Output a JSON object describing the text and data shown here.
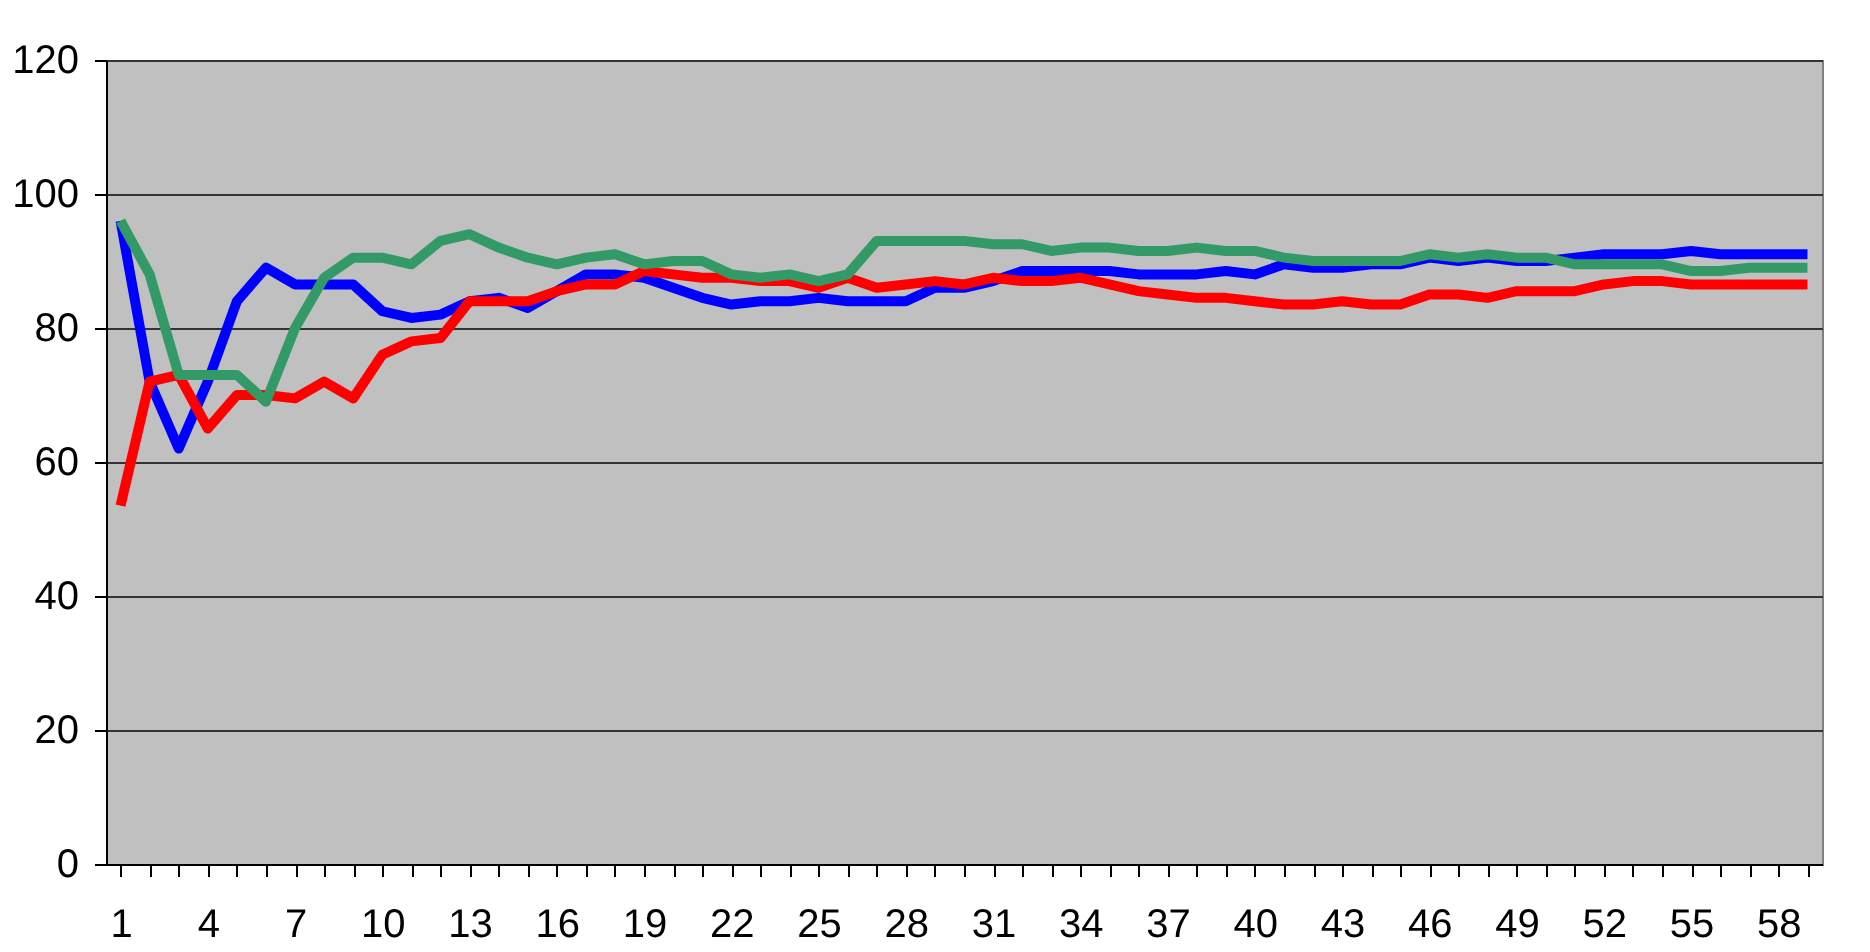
{
  "chart_data": {
    "type": "line",
    "categories": [
      "1",
      null,
      null,
      "4",
      null,
      null,
      "7",
      null,
      null,
      "10",
      null,
      null,
      "13",
      null,
      null,
      "16",
      null,
      null,
      "19",
      null,
      null,
      "22",
      null,
      null,
      "25",
      null,
      null,
      "28",
      null,
      null,
      "31",
      null,
      null,
      "34",
      null,
      null,
      "37",
      null,
      null,
      "40",
      null,
      null,
      "43",
      null,
      null,
      "46",
      null,
      null,
      "49",
      null,
      null,
      "52",
      null,
      null,
      "55",
      null,
      null,
      "58",
      null
    ],
    "series": [
      {
        "color": "#0000ff",
        "values": [
          96,
          72,
          62,
          72,
          84,
          89,
          86.5,
          86.5,
          86.5,
          82.5,
          81.5,
          82,
          84,
          84.5,
          83,
          85.5,
          88,
          88,
          87.5,
          86,
          84.5,
          83.5,
          84,
          84,
          84.5,
          84,
          84,
          84,
          86,
          86,
          87,
          88.5,
          88.5,
          88.5,
          88.5,
          88,
          88,
          88,
          88.5,
          88,
          89.5,
          89,
          89,
          89.5,
          89.5,
          90.5,
          90,
          90.5,
          90,
          90,
          90.5,
          91,
          91,
          91,
          91.5,
          91,
          91,
          91,
          91
        ]
      },
      {
        "color": "#ff0000",
        "values": [
          53.5,
          72,
          73,
          65,
          70,
          70,
          69.5,
          72,
          69.5,
          76,
          78,
          78.5,
          84,
          84,
          84,
          85.5,
          86.5,
          86.5,
          88.5,
          88,
          87.5,
          87.5,
          87,
          87,
          86,
          87.5,
          86,
          86.5,
          87,
          86.5,
          87.5,
          87,
          87,
          87.5,
          86.5,
          85.5,
          85,
          84.5,
          84.5,
          84,
          83.5,
          83.5,
          84,
          83.5,
          83.5,
          85,
          85,
          84.5,
          85.5,
          85.5,
          85.5,
          86.5,
          87,
          87,
          86.5,
          86.5,
          86.5,
          86.5,
          86.5
        ]
      },
      {
        "color": "#339966",
        "values": [
          96,
          88,
          73,
          73,
          73,
          69,
          80,
          87.5,
          90.5,
          90.5,
          89.5,
          93,
          94,
          92,
          90.5,
          89.5,
          90.5,
          91,
          89.5,
          90,
          90,
          88,
          87.5,
          88,
          87,
          88,
          93,
          93,
          93,
          93,
          92.5,
          92.5,
          91.5,
          92,
          92,
          91.5,
          91.5,
          92,
          91.5,
          91.5,
          90.5,
          90,
          90,
          90,
          90,
          91,
          90.5,
          91,
          90.5,
          90.5,
          89.5,
          89.5,
          89.5,
          89.5,
          88.5,
          88.5,
          89,
          89,
          89
        ]
      }
    ],
    "ylim": [
      0,
      120
    ],
    "yticks": [
      0,
      20,
      40,
      60,
      80,
      100,
      120
    ],
    "grid": "y",
    "legend": false
  }
}
